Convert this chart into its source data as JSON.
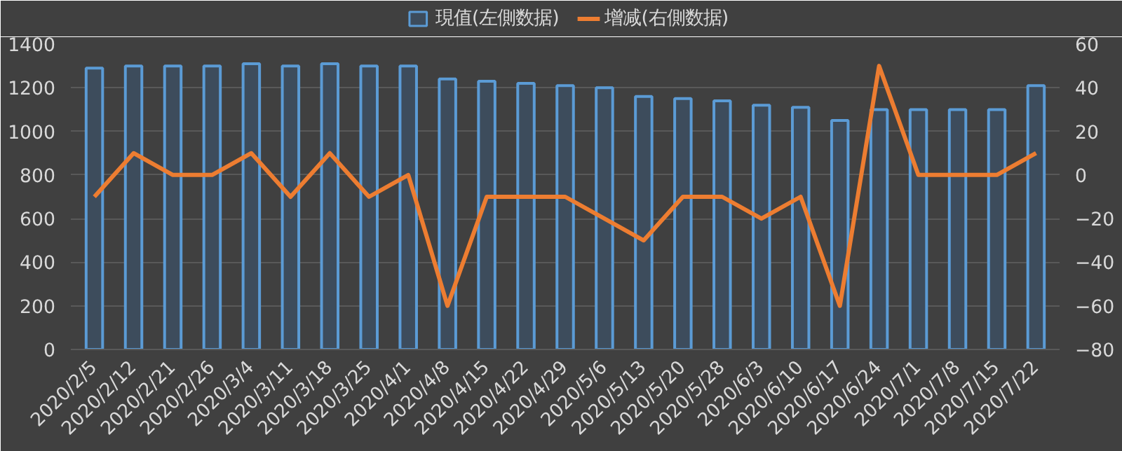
{
  "chart_data": {
    "type": "bar",
    "categories": [
      "2020/2/5",
      "2020/2/12",
      "2020/2/21",
      "2020/2/26",
      "2020/3/4",
      "2020/3/11",
      "2020/3/18",
      "2020/3/25",
      "2020/4/1",
      "2020/4/8",
      "2020/4/15",
      "2020/4/22",
      "2020/4/29",
      "2020/5/6",
      "2020/5/13",
      "2020/5/20",
      "2020/5/28",
      "2020/6/3",
      "2020/6/10",
      "2020/6/17",
      "2020/6/24",
      "2020/7/1",
      "2020/7/8",
      "2020/7/15",
      "2020/7/22"
    ],
    "series": [
      {
        "name": "現值(左側数据)",
        "color": "#5b9bd5",
        "values": [
          1290,
          1300,
          1300,
          1300,
          1310,
          1300,
          1310,
          1300,
          1300,
          1240,
          1230,
          1220,
          1210,
          1200,
          1160,
          1150,
          1140,
          1120,
          1110,
          1050,
          1100,
          1100,
          1100,
          1100,
          1210
        ]
      },
      {
        "name": "增减(右側数据)",
        "type": "line",
        "axis": "y2",
        "color": "#ed7d31",
        "values": [
          -10,
          10,
          0,
          0,
          10,
          -10,
          10,
          -10,
          0,
          -60,
          -10,
          -10,
          -10,
          -20,
          -30,
          -10,
          -10,
          -20,
          -10,
          -60,
          50,
          0,
          0,
          0,
          10
        ]
      }
    ],
    "ylim": [
      0,
      1400
    ],
    "yticks": [
      0,
      200,
      400,
      600,
      800,
      1000,
      1200,
      1400
    ],
    "y2lim": [
      -80,
      60
    ],
    "y2ticks": [
      -80,
      -60,
      -40,
      -20,
      0,
      20,
      40,
      60
    ],
    "grid": "y",
    "legend": "top",
    "marker": "none",
    "line_style": "solid"
  }
}
